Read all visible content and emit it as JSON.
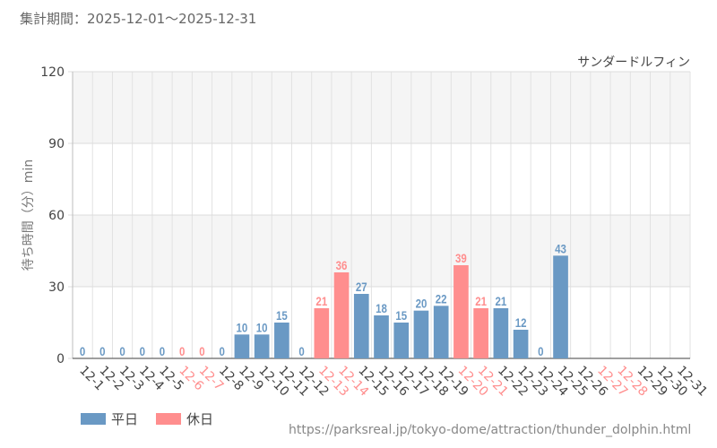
{
  "period_label": "集計期間：2025-12-01〜2025-12-31",
  "source_url": "https://parksreal.jp/tokyo-dome/attraction/thunder_dolphin.html",
  "colors": {
    "weekday": "#6a99c4",
    "holiday": "#ff8e8e",
    "grid": "#e2e2e2",
    "band": "#f5f5f5"
  },
  "legend": {
    "weekday": "平日",
    "holiday": "休日"
  },
  "chart_data": {
    "type": "bar",
    "title": "サンダードルフィン",
    "ylabel": "待ち時間（分）min",
    "xlabel": "",
    "ylim": [
      0,
      120
    ],
    "yticks": [
      0,
      30,
      60,
      90,
      120
    ],
    "categories": [
      "12-1",
      "12-2",
      "12-3",
      "12-4",
      "12-5",
      "12-6",
      "12-7",
      "12-8",
      "12-9",
      "12-10",
      "12-11",
      "12-12",
      "12-13",
      "12-14",
      "12-15",
      "12-16",
      "12-17",
      "12-18",
      "12-19",
      "12-20",
      "12-21",
      "12-22",
      "12-23",
      "12-24",
      "12-25",
      "12-26",
      "12-27",
      "12-28",
      "12-29",
      "12-30",
      "12-31"
    ],
    "values": [
      0,
      0,
      0,
      0,
      0,
      0,
      0,
      0,
      10,
      10,
      15,
      0,
      21,
      36,
      27,
      18,
      15,
      20,
      22,
      39,
      21,
      21,
      12,
      0,
      43,
      null,
      null,
      null,
      null,
      null,
      null
    ],
    "holiday": [
      false,
      false,
      false,
      false,
      false,
      true,
      true,
      false,
      false,
      false,
      false,
      false,
      true,
      true,
      false,
      false,
      false,
      false,
      false,
      true,
      true,
      false,
      false,
      false,
      false,
      false,
      true,
      true,
      false,
      false,
      false
    ],
    "series": [
      {
        "name": "平日",
        "color": "#6a99c4"
      },
      {
        "name": "休日",
        "color": "#ff8e8e"
      }
    ]
  }
}
